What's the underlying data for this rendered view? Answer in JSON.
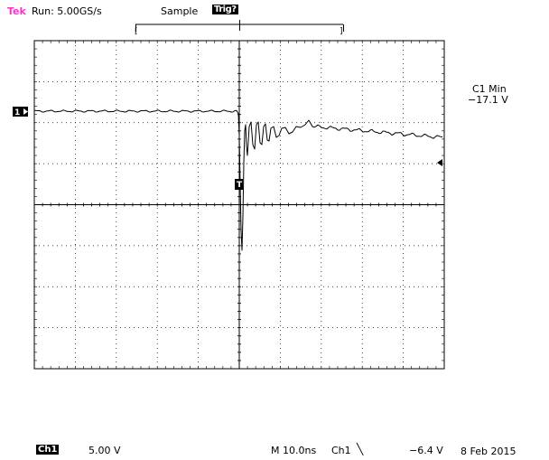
{
  "status": {
    "brand": "Tek",
    "run_state": "Run: 5.00GS/s",
    "acquire_mode": "Sample",
    "trigger_state": "Trig?"
  },
  "measurement": {
    "label": "C1 Min",
    "value": "−17.1 V"
  },
  "channel": {
    "marker": "1",
    "badge": "Ch1",
    "scale": "5.00 V"
  },
  "timebase": "M 10.0ns",
  "trigger": {
    "source": "Ch1",
    "edge_icon": "falling-edge-icon",
    "level": "−6.4 V",
    "marker": "T"
  },
  "date": "8 Feb 2015",
  "colors": {
    "brand": "#ff33cc",
    "trace": "#000000",
    "grid": "#000000"
  }
}
